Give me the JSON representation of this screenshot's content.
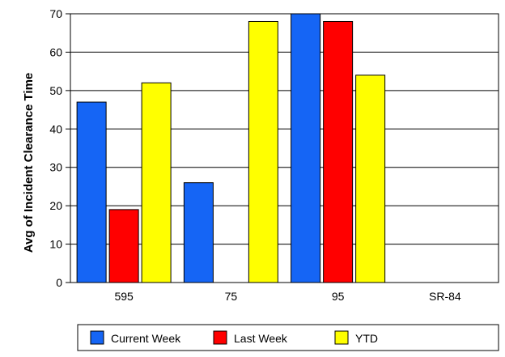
{
  "chart_data": {
    "type": "bar",
    "title": "",
    "xlabel": "",
    "ylabel": "Avg of Incident Clearance Time",
    "ylim": [
      0,
      70
    ],
    "yticks": [
      0,
      10,
      20,
      30,
      40,
      50,
      60,
      70
    ],
    "grid": true,
    "legend_position": "bottom",
    "categories": [
      "595",
      "75",
      "95",
      "SR-84"
    ],
    "series": [
      {
        "name": "Current Week",
        "color": "#1565f5",
        "values": [
          47,
          26,
          null,
          null
        ]
      },
      {
        "name": "Last Week",
        "color": "#ff0000",
        "values": [
          19,
          null,
          68,
          null
        ]
      },
      {
        "name": "YTD",
        "color": "#ffff00",
        "values": [
          52,
          68,
          54,
          null
        ]
      }
    ]
  }
}
